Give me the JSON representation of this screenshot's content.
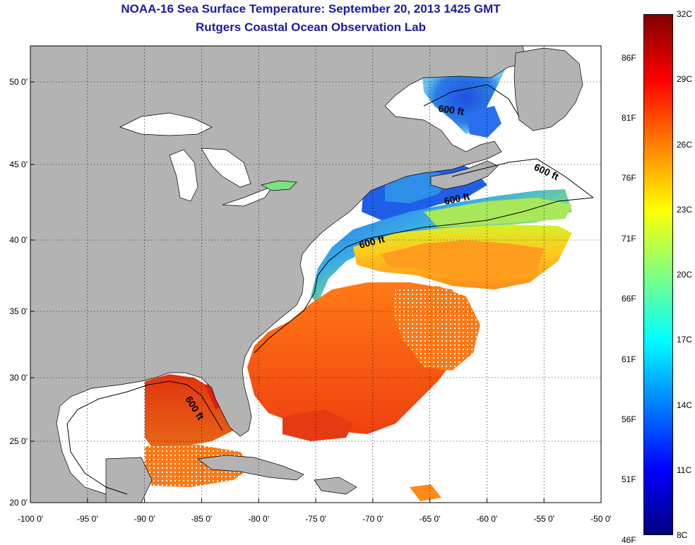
{
  "title": {
    "line1": "NOAA-16 Sea Surface Temperature:  September 20, 2013 1425 GMT",
    "line2": "Rutgers Coastal Ocean Observation Lab"
  },
  "map": {
    "lon_range": [
      -100,
      -50
    ],
    "lat_range": [
      20,
      52.5
    ],
    "lon_ticks": [
      "-100 0'",
      "-95 0'",
      "-90 0'",
      "-85 0'",
      "-80 0'",
      "-75 0'",
      "-70 0'",
      "-65 0'",
      "-60 0'",
      "-55 0'",
      "-50 0'"
    ],
    "lat_ticks": [
      "20 0'",
      "25 0'",
      "30 0'",
      "35 0'",
      "40 0'",
      "45 0'",
      "50 0'"
    ],
    "land_color": "#b3b3b3",
    "grid": "dotted",
    "isobath_labels": [
      "600 ft",
      "600 ft",
      "600 ft",
      "600 ft",
      "600 ft"
    ]
  },
  "colorbar": {
    "fahrenheit_labels": [
      "86F",
      "81F",
      "76F",
      "71F",
      "66F",
      "61F",
      "56F",
      "51F",
      "46F"
    ],
    "celsius_labels": [
      "32C",
      "29C",
      "26C",
      "23C",
      "20C",
      "17C",
      "14C",
      "11C",
      "8C"
    ],
    "colormap": "jet",
    "colors": [
      "#800000",
      "#ff0000",
      "#ff8000",
      "#ffff00",
      "#80ff80",
      "#00ffff",
      "#0080ff",
      "#0000ff",
      "#000080"
    ]
  }
}
